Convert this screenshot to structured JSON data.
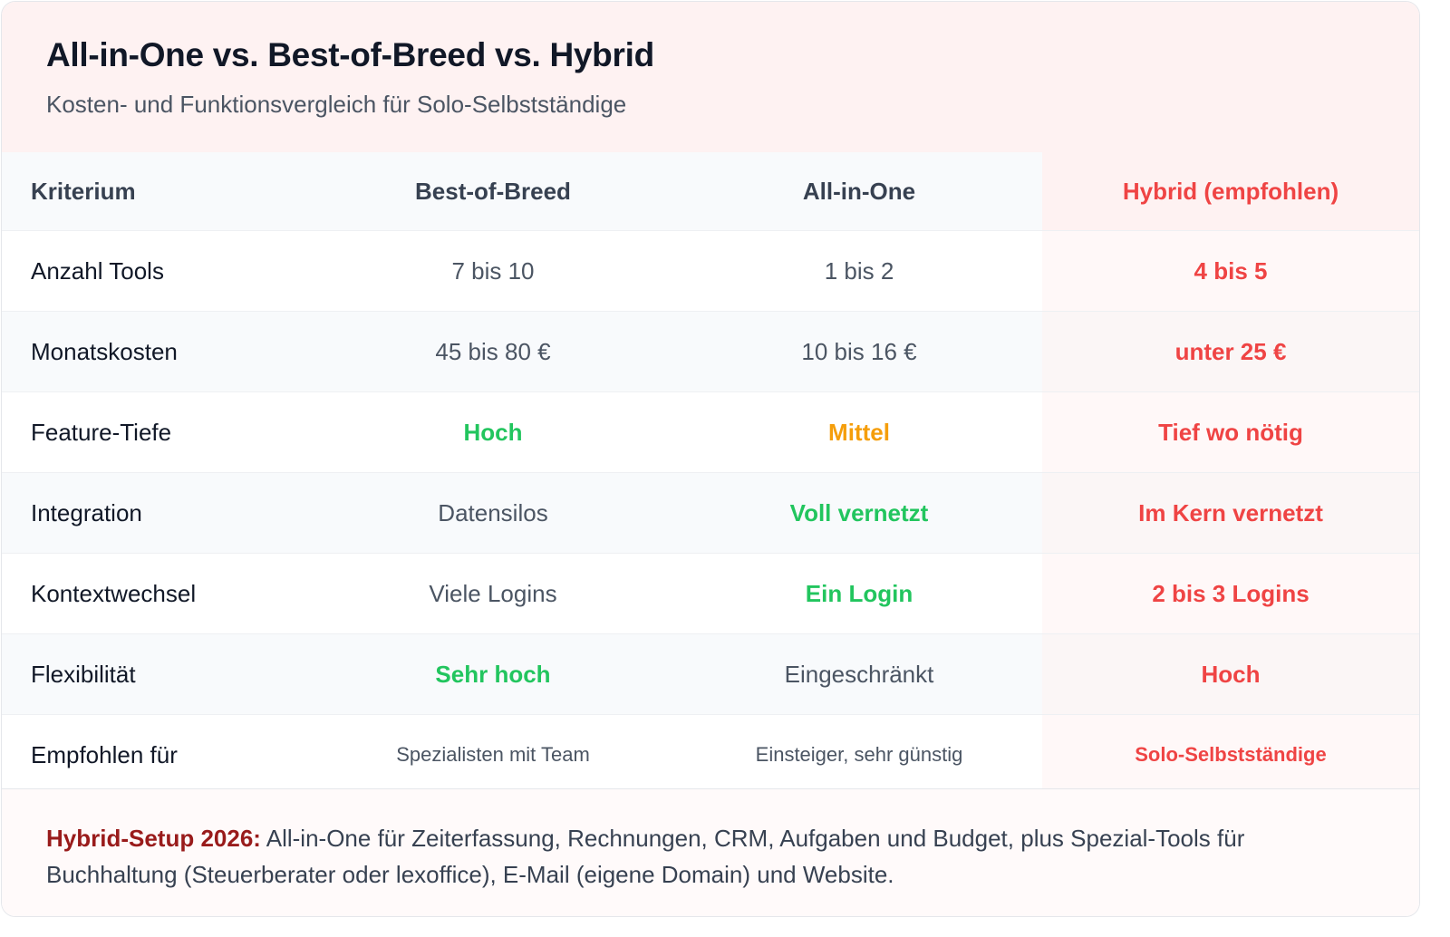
{
  "header": {
    "title": "All-in-One vs. Best-of-Breed vs. Hybrid",
    "subtitle": "Kosten- und Funktionsvergleich für Solo-Selbstständige"
  },
  "table": {
    "columns": [
      "Kriterium",
      "Best-of-Breed",
      "All-in-One",
      "Hybrid (empfohlen)"
    ],
    "rows": [
      {
        "label": "Anzahl Tools",
        "best": "7 bis 10",
        "aio": "1 bis 2",
        "hybrid": "4 bis 5"
      },
      {
        "label": "Monatskosten",
        "best": "45 bis 80 €",
        "aio": "10 bis 16 €",
        "hybrid": "unter 25 €"
      },
      {
        "label": "Feature-Tiefe",
        "best": "Hoch",
        "aio": "Mittel",
        "hybrid": "Tief wo nötig"
      },
      {
        "label": "Integration",
        "best": "Datensilos",
        "aio": "Voll vernetzt",
        "hybrid": "Im Kern vernetzt"
      },
      {
        "label": "Kontextwechsel",
        "best": "Viele Logins",
        "aio": "Ein Login",
        "hybrid": "2 bis 3 Logins"
      },
      {
        "label": "Flexibilität",
        "best": "Sehr hoch",
        "aio": "Eingeschränkt",
        "hybrid": "Hoch"
      },
      {
        "label": "Empfohlen für",
        "best": "Spezialisten mit Team",
        "aio": "Einsteiger, sehr günstig",
        "hybrid": "Solo-Selbstständige"
      }
    ]
  },
  "footer": {
    "lead": "Hybrid-Setup 2026:",
    "text": "All-in-One für Zeiterfassung, Rechnungen, CRM, Aufgaben und Budget, plus Spezial-Tools für Buchhaltung (Steuerberater oder lexoffice), E-Mail (eigene Domain) und Website."
  },
  "colors": {
    "hybrid": "#ef4444",
    "positive": "#22c55e",
    "neutral": "#f59e0b",
    "footer_lead": "#991b1b"
  }
}
